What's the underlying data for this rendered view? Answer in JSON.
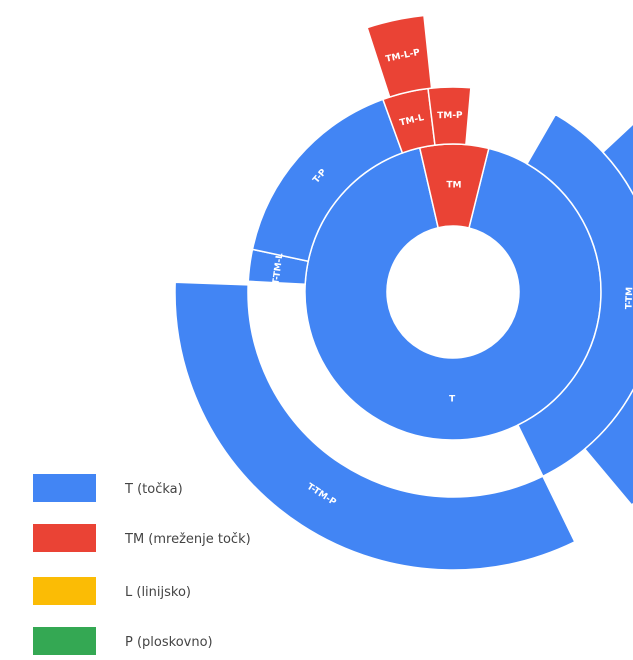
{
  "chart_data": {
    "type": "sunburst",
    "legend_position": "bottom-left",
    "legend": [
      {
        "label": "T (točka)",
        "color": "#4285f4"
      },
      {
        "label": "TM (mreženje točk)",
        "color": "#ea4335"
      },
      {
        "label": "L (linijsko)",
        "color": "#fbbc05"
      },
      {
        "label": "P (ploskovno)",
        "color": "#34a853"
      }
    ],
    "nodes": [
      {
        "name": "T",
        "label": "T",
        "ring": 1,
        "start_deg": 14,
        "end_deg": 347,
        "color": "#4285f4"
      },
      {
        "name": "TM",
        "label": "TM",
        "ring": 1,
        "start_deg": 347,
        "end_deg": 374,
        "color": "#ea4335"
      },
      {
        "name": "T-TM",
        "label": "T-TM",
        "ring": 2,
        "start_deg": 30,
        "end_deg": 154,
        "color": "#4285f4"
      },
      {
        "name": "T-TM-L",
        "label": "T-TM-L",
        "ring": 2,
        "start_deg": 273,
        "end_deg": 282,
        "color": "#4285f4"
      },
      {
        "name": "T-P",
        "label": "T-P",
        "ring": 2,
        "start_deg": 282,
        "end_deg": 340,
        "color": "#4285f4"
      },
      {
        "name": "TM-L",
        "label": "TM-L",
        "ring": 2,
        "start_deg": 340,
        "end_deg": 353,
        "color": "#ea4335"
      },
      {
        "name": "TM-P",
        "label": "TM-P",
        "ring": 2,
        "start_deg": 353,
        "end_deg": 365,
        "color": "#ea4335"
      },
      {
        "name": "T-TM-P",
        "label": "T-TM-P",
        "ring": 3,
        "start_deg": 47,
        "end_deg": 140,
        "color": "#4285f4"
      },
      {
        "name": "T-TM-P-2",
        "label": "T-TM-P",
        "ring": 3,
        "start_deg": 154,
        "end_deg": 272,
        "color": "#4285f4"
      },
      {
        "name": "TM-L-P",
        "label": "TM-L-P",
        "ring": 3,
        "start_deg": 342,
        "end_deg": 354,
        "color": "#ea4335"
      }
    ]
  }
}
